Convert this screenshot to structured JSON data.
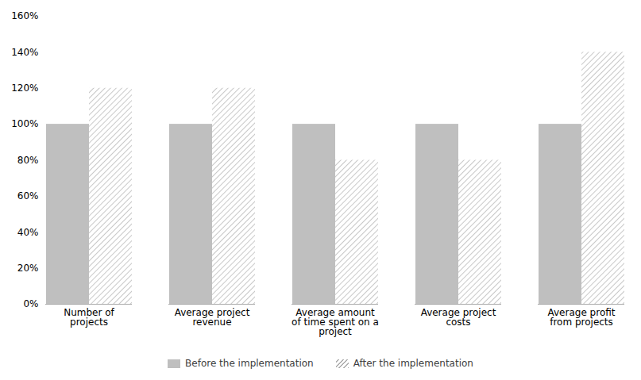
{
  "chart_data": {
    "type": "bar",
    "categories": [
      "Number of\nprojects",
      "Average project\nrevenue",
      "Average amount\nof time spent on a\nproject",
      "Average project\ncosts",
      "Average profit\nfrom projects"
    ],
    "series": [
      {
        "name": "Before the implementation",
        "color": "#bfbfbf",
        "values": [
          1.0,
          1.0,
          1.0,
          1.0,
          1.0
        ]
      },
      {
        "name": "After the implementation",
        "color": "#b0b0b0",
        "values": [
          1.2,
          1.2,
          0.8,
          0.8,
          1.4
        ]
      }
    ],
    "ylim": [
      0,
      1.6
    ],
    "yticks": [
      {
        "value": 0,
        "label": "0%"
      },
      {
        "value": 0.2,
        "label": "20%"
      },
      {
        "value": 0.4,
        "label": "40%"
      },
      {
        "value": 0.6,
        "label": "60%"
      },
      {
        "value": 0.8,
        "label": "80%"
      },
      {
        "value": 1.0,
        "label": "100%"
      },
      {
        "value": 1.2,
        "label": "120%"
      },
      {
        "value": 1.4,
        "label": "140%"
      },
      {
        "value": 1.6,
        "label": "160%"
      }
    ],
    "grid": false,
    "legend": "bottom"
  }
}
